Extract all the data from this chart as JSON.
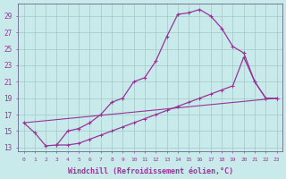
{
  "background_color": "#c8eaea",
  "grid_color": "#a0c8c8",
  "line_color": "#993399",
  "xlabel": "Windchill (Refroidissement éolien,°C)",
  "xlabel_fontsize": 6,
  "ytick_values": [
    13,
    15,
    17,
    19,
    21,
    23,
    25,
    27,
    29
  ],
  "xtick_values": [
    0,
    1,
    2,
    3,
    4,
    5,
    6,
    7,
    8,
    9,
    10,
    11,
    12,
    13,
    14,
    15,
    16,
    17,
    18,
    19,
    20,
    21,
    22,
    23
  ],
  "ylim": [
    12.5,
    30.5
  ],
  "xlim": [
    -0.5,
    23.5
  ],
  "curve1_x": [
    0,
    1,
    2,
    3,
    4,
    5,
    6,
    7,
    8,
    9,
    10,
    11,
    12,
    13,
    14,
    15,
    16,
    17,
    18,
    19,
    20,
    21,
    22,
    23
  ],
  "curve1_y": [
    16.0,
    14.8,
    13.2,
    13.3,
    15.0,
    15.3,
    16.0,
    17.0,
    18.5,
    19.0,
    21.0,
    21.5,
    23.5,
    26.5,
    29.2,
    29.4,
    29.8,
    29.0,
    27.5,
    25.3,
    24.5,
    21.0,
    19.0,
    19.0
  ],
  "curve2_x": [
    3,
    4,
    5,
    6,
    7,
    8,
    9,
    10,
    11,
    12,
    13,
    14,
    15,
    16,
    17,
    18,
    19,
    20,
    21,
    22,
    23
  ],
  "curve2_y": [
    13.3,
    13.3,
    13.5,
    14.0,
    14.5,
    15.0,
    15.5,
    16.0,
    16.5,
    17.0,
    17.5,
    18.0,
    18.5,
    19.0,
    19.5,
    20.0,
    20.5,
    24.0,
    21.0,
    19.0,
    19.0
  ],
  "curve3_x": [
    0,
    23
  ],
  "curve3_y": [
    16.0,
    19.0
  ]
}
